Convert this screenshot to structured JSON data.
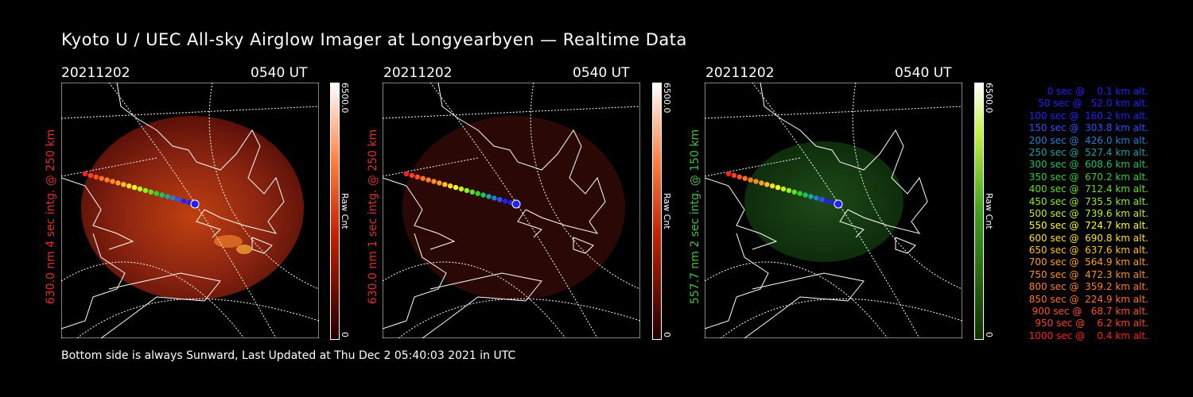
{
  "title": "Kyoto U / UEC All-sky Airglow Imager at Longyearbyen — Realtime Data",
  "footer": "Bottom side is always Sunward, Last Updated at Thu Dec  2 05:40:03 2021 in UTC",
  "colorbar": {
    "max_label": "6500.0",
    "min_label": "0",
    "unit_label": "Raw Cnt"
  },
  "panels": [
    {
      "date": "20211202",
      "time": "0540 UT",
      "side_label": "630.0 nm 4 sec intg. @ 250 km",
      "color": "#e03020"
    },
    {
      "date": "20211202",
      "time": "0540 UT",
      "side_label": "630.0 nm 1 sec intg. @ 250 km",
      "color": "#e03020"
    },
    {
      "date": "20211202",
      "time": "0540 UT",
      "side_label": "557.7 nm 2 sec intg. @ 150 km",
      "color": "#40c040"
    }
  ],
  "legend": [
    {
      "text": "0 sec @    0.1 km alt.",
      "color": "#2020ff"
    },
    {
      "text": "50 sec @   52.0 km alt.",
      "color": "#2020ff"
    },
    {
      "text": "100 sec @  160.2 km alt.",
      "color": "#2020ff"
    },
    {
      "text": "150 sec @  303.8 km alt.",
      "color": "#3050ff"
    },
    {
      "text": "200 sec @  426.0 km alt.",
      "color": "#2080d0"
    },
    {
      "text": "250 sec @  527.4 km alt.",
      "color": "#20a0a0"
    },
    {
      "text": "300 sec @  608.6 km alt.",
      "color": "#20c060"
    },
    {
      "text": "350 sec @  670.2 km alt.",
      "color": "#30d030"
    },
    {
      "text": "400 sec @  712.4 km alt.",
      "color": "#60e020"
    },
    {
      "text": "450 sec @  735.5 km alt.",
      "color": "#90f020"
    },
    {
      "text": "500 sec @  739.6 km alt.",
      "color": "#c0f020"
    },
    {
      "text": "550 sec @  724.7 km alt.",
      "color": "#ffff20"
    },
    {
      "text": "600 sec @  690.8 km alt.",
      "color": "#ffe020"
    },
    {
      "text": "650 sec @  637.6 km alt.",
      "color": "#ffc020"
    },
    {
      "text": "700 sec @  564.9 km alt.",
      "color": "#ffa020"
    },
    {
      "text": "750 sec @  472.3 km alt.",
      "color": "#ff9020"
    },
    {
      "text": "800 sec @  359.2 km alt.",
      "color": "#ff8020"
    },
    {
      "text": "850 sec @  224.9 km alt.",
      "color": "#ff7020"
    },
    {
      "text": "900 sec @   68.7 km alt.",
      "color": "#ff5020"
    },
    {
      "text": "950 sec @    6.2 km alt.",
      "color": "#ff4020"
    },
    {
      "text": "1000 sec @    0.4 km alt.",
      "color": "#ff2020"
    }
  ]
}
